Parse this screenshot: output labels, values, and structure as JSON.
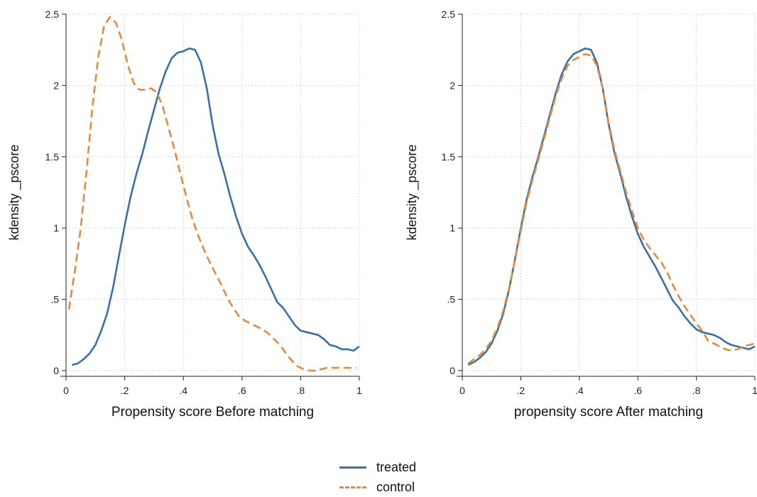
{
  "colors": {
    "treated": "#3a70a8",
    "control": "#e8893a",
    "grid": "#c9c9c9",
    "axis": "#222222"
  },
  "chart_data": [
    {
      "type": "line",
      "xlabel": "Propensity score Before matching",
      "ylabel": "kdensity _pscore",
      "xlim": [
        0,
        1
      ],
      "ylim": [
        0,
        2.5
      ],
      "x_ticks": [
        0,
        0.2,
        0.4,
        0.6,
        0.8,
        1
      ],
      "x_tick_labels": [
        "0",
        ".2",
        ".4",
        ".6",
        ".8",
        "1"
      ],
      "y_ticks": [
        0,
        0.5,
        1,
        1.5,
        2,
        2.5
      ],
      "y_tick_labels": [
        "0",
        ".5",
        "1",
        "1.5",
        "2",
        "2.5"
      ],
      "grid": true,
      "series": [
        {
          "name": "treated",
          "style": "solid",
          "x": [
            0.02,
            0.04,
            0.06,
            0.08,
            0.1,
            0.12,
            0.14,
            0.16,
            0.18,
            0.2,
            0.22,
            0.24,
            0.26,
            0.28,
            0.3,
            0.32,
            0.34,
            0.36,
            0.38,
            0.4,
            0.42,
            0.44,
            0.46,
            0.48,
            0.5,
            0.52,
            0.54,
            0.56,
            0.58,
            0.6,
            0.62,
            0.64,
            0.66,
            0.68,
            0.7,
            0.72,
            0.74,
            0.76,
            0.78,
            0.8,
            0.82,
            0.84,
            0.86,
            0.88,
            0.9,
            0.92,
            0.94,
            0.96,
            0.98,
            1.0
          ],
          "y": [
            0.04,
            0.05,
            0.08,
            0.12,
            0.18,
            0.28,
            0.4,
            0.58,
            0.8,
            1.02,
            1.22,
            1.38,
            1.52,
            1.68,
            1.83,
            1.98,
            2.1,
            2.19,
            2.23,
            2.24,
            2.26,
            2.25,
            2.16,
            1.98,
            1.72,
            1.52,
            1.38,
            1.22,
            1.08,
            0.96,
            0.87,
            0.81,
            0.74,
            0.66,
            0.57,
            0.48,
            0.44,
            0.38,
            0.32,
            0.28,
            0.27,
            0.26,
            0.25,
            0.22,
            0.18,
            0.17,
            0.15,
            0.15,
            0.14,
            0.17
          ]
        },
        {
          "name": "control",
          "style": "dashed",
          "x": [
            0.01,
            0.03,
            0.05,
            0.07,
            0.09,
            0.11,
            0.13,
            0.15,
            0.17,
            0.19,
            0.21,
            0.23,
            0.25,
            0.27,
            0.29,
            0.31,
            0.33,
            0.35,
            0.37,
            0.39,
            0.41,
            0.43,
            0.45,
            0.47,
            0.49,
            0.51,
            0.53,
            0.55,
            0.57,
            0.59,
            0.61,
            0.63,
            0.65,
            0.67,
            0.69,
            0.71,
            0.73,
            0.75,
            0.77,
            0.79,
            0.81,
            0.83,
            0.85,
            0.87,
            0.89,
            0.91,
            0.93,
            0.95,
            0.97,
            0.99
          ],
          "y": [
            0.43,
            0.7,
            1.0,
            1.4,
            1.85,
            2.2,
            2.42,
            2.48,
            2.44,
            2.32,
            2.15,
            2.02,
            1.97,
            1.97,
            1.98,
            1.95,
            1.85,
            1.7,
            1.55,
            1.38,
            1.22,
            1.07,
            0.95,
            0.85,
            0.76,
            0.68,
            0.6,
            0.51,
            0.44,
            0.38,
            0.35,
            0.33,
            0.31,
            0.29,
            0.26,
            0.22,
            0.18,
            0.12,
            0.07,
            0.03,
            0.01,
            0.0,
            0.0,
            0.01,
            0.02,
            0.02,
            0.02,
            0.02,
            0.02,
            0.02
          ]
        }
      ]
    },
    {
      "type": "line",
      "xlabel": "propensity score After matching",
      "ylabel": "kdensity _pscore",
      "xlim": [
        0,
        1
      ],
      "ylim": [
        0,
        2.5
      ],
      "x_ticks": [
        0,
        0.2,
        0.4,
        0.6,
        0.8,
        1
      ],
      "x_tick_labels": [
        "0",
        ".2",
        ".4",
        ".6",
        ".8",
        "1"
      ],
      "y_ticks": [
        0,
        0.5,
        1,
        1.5,
        2,
        2.5
      ],
      "y_tick_labels": [
        "0",
        ".5",
        "1",
        "1.5",
        "2",
        "2.5"
      ],
      "grid": true,
      "series": [
        {
          "name": "treated",
          "style": "solid",
          "x": [
            0.02,
            0.04,
            0.06,
            0.08,
            0.1,
            0.12,
            0.14,
            0.16,
            0.18,
            0.2,
            0.22,
            0.24,
            0.26,
            0.28,
            0.3,
            0.32,
            0.34,
            0.36,
            0.38,
            0.4,
            0.42,
            0.44,
            0.46,
            0.48,
            0.5,
            0.52,
            0.54,
            0.56,
            0.58,
            0.6,
            0.62,
            0.64,
            0.66,
            0.68,
            0.7,
            0.72,
            0.74,
            0.76,
            0.78,
            0.8,
            0.82,
            0.84,
            0.86,
            0.88,
            0.9,
            0.92,
            0.94,
            0.96,
            0.98,
            1.0
          ],
          "y": [
            0.04,
            0.06,
            0.09,
            0.13,
            0.19,
            0.28,
            0.4,
            0.57,
            0.78,
            1.0,
            1.2,
            1.36,
            1.5,
            1.65,
            1.8,
            1.95,
            2.08,
            2.17,
            2.22,
            2.24,
            2.26,
            2.25,
            2.16,
            1.98,
            1.73,
            1.53,
            1.38,
            1.22,
            1.08,
            0.96,
            0.87,
            0.8,
            0.73,
            0.65,
            0.57,
            0.49,
            0.44,
            0.38,
            0.33,
            0.29,
            0.27,
            0.26,
            0.25,
            0.23,
            0.2,
            0.18,
            0.17,
            0.16,
            0.15,
            0.17
          ]
        },
        {
          "name": "control",
          "style": "dashed",
          "x": [
            0.02,
            0.04,
            0.06,
            0.08,
            0.1,
            0.12,
            0.14,
            0.16,
            0.18,
            0.2,
            0.22,
            0.24,
            0.26,
            0.28,
            0.3,
            0.32,
            0.34,
            0.36,
            0.38,
            0.4,
            0.42,
            0.44,
            0.46,
            0.48,
            0.5,
            0.52,
            0.54,
            0.56,
            0.58,
            0.6,
            0.62,
            0.64,
            0.66,
            0.68,
            0.7,
            0.72,
            0.74,
            0.76,
            0.78,
            0.8,
            0.82,
            0.84,
            0.86,
            0.88,
            0.9,
            0.92,
            0.94,
            0.96,
            0.98,
            1.0
          ],
          "y": [
            0.05,
            0.08,
            0.11,
            0.15,
            0.21,
            0.3,
            0.42,
            0.58,
            0.78,
            0.98,
            1.18,
            1.34,
            1.48,
            1.63,
            1.78,
            1.93,
            2.05,
            2.14,
            2.18,
            2.2,
            2.22,
            2.21,
            2.14,
            1.98,
            1.74,
            1.55,
            1.4,
            1.25,
            1.12,
            1.0,
            0.92,
            0.86,
            0.81,
            0.76,
            0.69,
            0.6,
            0.52,
            0.45,
            0.39,
            0.33,
            0.28,
            0.21,
            0.19,
            0.17,
            0.15,
            0.14,
            0.15,
            0.17,
            0.18,
            0.19
          ]
        }
      ]
    }
  ],
  "legend": [
    {
      "label": "treated",
      "series": "treated",
      "style": "solid"
    },
    {
      "label": "control",
      "series": "control",
      "style": "dashed"
    }
  ]
}
